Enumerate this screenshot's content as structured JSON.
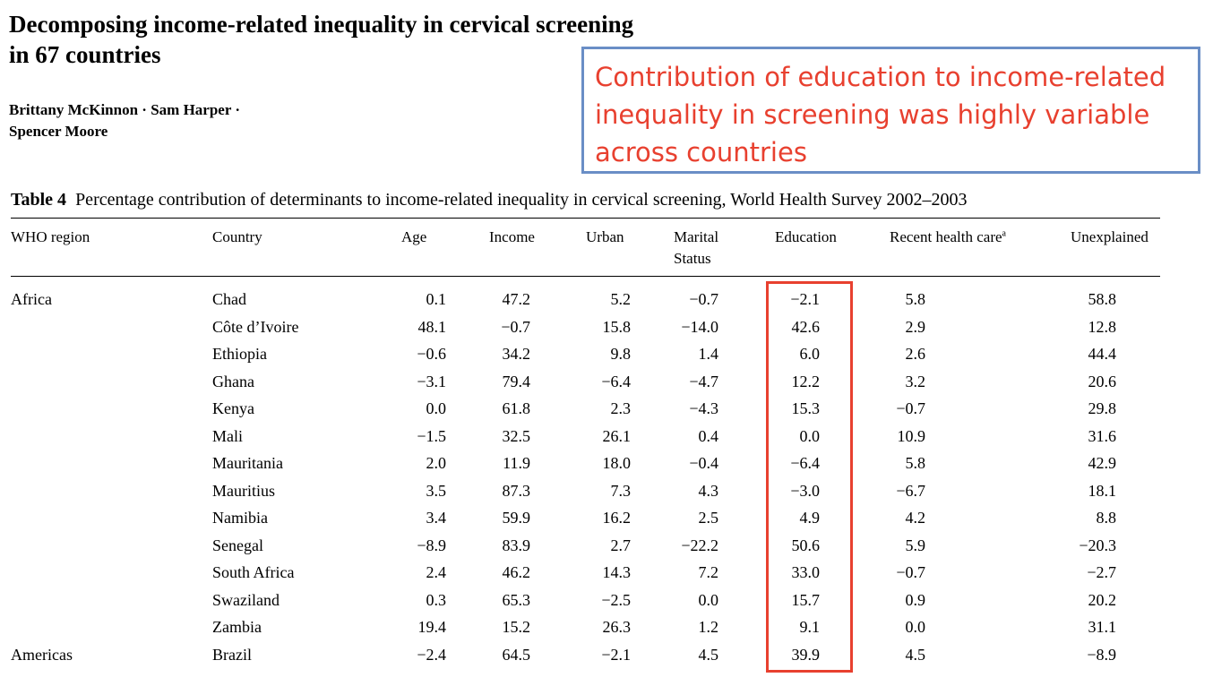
{
  "paper": {
    "title_line1": "Decomposing income-related inequality in cervical screening",
    "title_line2": "in 67 countries",
    "authors_line1": "Brittany McKinnon · Sam Harper ·",
    "authors_line2": "Spencer Moore"
  },
  "callout": {
    "line1": "Contribution of education to income-related",
    "line2": "inequality in screening was highly variable",
    "line3": "across countries"
  },
  "table": {
    "caption_label": "Table 4",
    "caption_text": "Percentage contribution of determinants to income-related inequality in cervical screening, World Health Survey 2002–2003",
    "headers": {
      "region": "WHO region",
      "country": "Country",
      "age": "Age",
      "income": "Income",
      "urban": "Urban",
      "marital_line1": "Marital",
      "marital_line2": "Status",
      "education": "Education",
      "recent_health_care": "Recent health care",
      "recent_health_care_sup": "a",
      "unexplained": "Unexplained"
    },
    "rows": [
      {
        "region": "Africa",
        "country": "Chad",
        "age": "0.1",
        "income": "47.2",
        "urban": "5.2",
        "marital": "−0.7",
        "education": "−2.1",
        "recent": "5.8",
        "unexplained": "58.8"
      },
      {
        "region": "",
        "country": "Côte d’Ivoire",
        "age": "48.1",
        "income": "−0.7",
        "urban": "15.8",
        "marital": "−14.0",
        "education": "42.6",
        "recent": "2.9",
        "unexplained": "12.8"
      },
      {
        "region": "",
        "country": "Ethiopia",
        "age": "−0.6",
        "income": "34.2",
        "urban": "9.8",
        "marital": "1.4",
        "education": "6.0",
        "recent": "2.6",
        "unexplained": "44.4"
      },
      {
        "region": "",
        "country": "Ghana",
        "age": "−3.1",
        "income": "79.4",
        "urban": "−6.4",
        "marital": "−4.7",
        "education": "12.2",
        "recent": "3.2",
        "unexplained": "20.6"
      },
      {
        "region": "",
        "country": "Kenya",
        "age": "0.0",
        "income": "61.8",
        "urban": "2.3",
        "marital": "−4.3",
        "education": "15.3",
        "recent": "−0.7",
        "unexplained": "29.8"
      },
      {
        "region": "",
        "country": "Mali",
        "age": "−1.5",
        "income": "32.5",
        "urban": "26.1",
        "marital": "0.4",
        "education": "0.0",
        "recent": "10.9",
        "unexplained": "31.6"
      },
      {
        "region": "",
        "country": "Mauritania",
        "age": "2.0",
        "income": "11.9",
        "urban": "18.0",
        "marital": "−0.4",
        "education": "−6.4",
        "recent": "5.8",
        "unexplained": "42.9"
      },
      {
        "region": "",
        "country": "Mauritius",
        "age": "3.5",
        "income": "87.3",
        "urban": "7.3",
        "marital": "4.3",
        "education": "−3.0",
        "recent": "−6.7",
        "unexplained": "18.1"
      },
      {
        "region": "",
        "country": "Namibia",
        "age": "3.4",
        "income": "59.9",
        "urban": "16.2",
        "marital": "2.5",
        "education": "4.9",
        "recent": "4.2",
        "unexplained": "8.8"
      },
      {
        "region": "",
        "country": "Senegal",
        "age": "−8.9",
        "income": "83.9",
        "urban": "2.7",
        "marital": "−22.2",
        "education": "50.6",
        "recent": "5.9",
        "unexplained": "−20.3"
      },
      {
        "region": "",
        "country": "South Africa",
        "age": "2.4",
        "income": "46.2",
        "urban": "14.3",
        "marital": "7.2",
        "education": "33.0",
        "recent": "−0.7",
        "unexplained": "−2.7"
      },
      {
        "region": "",
        "country": "Swaziland",
        "age": "0.3",
        "income": "65.3",
        "urban": "−2.5",
        "marital": "0.0",
        "education": "15.7",
        "recent": "0.9",
        "unexplained": "20.2"
      },
      {
        "region": "",
        "country": "Zambia",
        "age": "19.4",
        "income": "15.2",
        "urban": "26.3",
        "marital": "1.2",
        "education": "9.1",
        "recent": "0.0",
        "unexplained": "31.1"
      },
      {
        "region": "Americas",
        "country": "Brazil",
        "age": "−2.4",
        "income": "64.5",
        "urban": "−2.1",
        "marital": "4.5",
        "education": "39.9",
        "recent": "4.5",
        "unexplained": "−8.9"
      }
    ]
  },
  "colors": {
    "callout_text": "#e8402f",
    "callout_border": "#6a8ec6",
    "highlight_border": "#e8402f"
  }
}
